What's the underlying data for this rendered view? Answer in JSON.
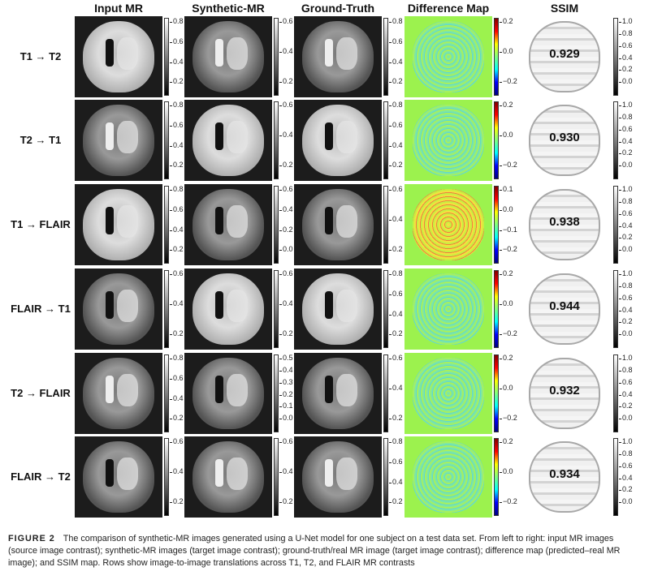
{
  "columns": [
    "Input MR",
    "Synthetic-MR",
    "Ground-Truth",
    "Difference Map",
    "SSIM"
  ],
  "rows": [
    {
      "label": "T1 → T2",
      "input_ticks": [
        "0.8",
        "0.6",
        "0.4",
        "0.2"
      ],
      "synthetic_ticks": [
        "0.6",
        "0.4",
        "0.2"
      ],
      "gt_ticks": [
        "0.8",
        "0.6",
        "0.4",
        "0.2"
      ],
      "diff_ticks": [
        "0.2",
        "0.0",
        "−0.2"
      ],
      "ssim": "0.929",
      "input_contrast": "T1",
      "target_contrast": "T2"
    },
    {
      "label": "T2 → T1",
      "input_ticks": [
        "0.8",
        "0.6",
        "0.4",
        "0.2"
      ],
      "synthetic_ticks": [
        "0.6",
        "0.4",
        "0.2"
      ],
      "gt_ticks": [
        "0.8",
        "0.6",
        "0.4",
        "0.2"
      ],
      "diff_ticks": [
        "0.2",
        "0.0",
        "−0.2"
      ],
      "ssim": "0.930",
      "input_contrast": "T2",
      "target_contrast": "T1"
    },
    {
      "label": "T1 → FLAIR",
      "input_ticks": [
        "0.8",
        "0.6",
        "0.4",
        "0.2"
      ],
      "synthetic_ticks": [
        "0.6",
        "0.4",
        "0.2",
        "0.0"
      ],
      "gt_ticks": [
        "0.6",
        "0.4",
        "0.2"
      ],
      "diff_ticks": [
        "0.1",
        "0.0",
        "−0.1",
        "−0.2"
      ],
      "ssim": "0.938",
      "input_contrast": "T1",
      "target_contrast": "FLAIR"
    },
    {
      "label": "FLAIR → T1",
      "input_ticks": [
        "0.6",
        "0.4",
        "0.2"
      ],
      "synthetic_ticks": [
        "0.6",
        "0.4",
        "0.2"
      ],
      "gt_ticks": [
        "0.8",
        "0.6",
        "0.4",
        "0.2"
      ],
      "diff_ticks": [
        "0.2",
        "0.0",
        "−0.2"
      ],
      "ssim": "0.944",
      "input_contrast": "FLAIR",
      "target_contrast": "T1"
    },
    {
      "label": "T2 → FLAIR",
      "input_ticks": [
        "0.8",
        "0.6",
        "0.4",
        "0.2"
      ],
      "synthetic_ticks": [
        "0.5",
        "0.4",
        "0.3",
        "0.2",
        "0.1",
        "0.0"
      ],
      "gt_ticks": [
        "0.6",
        "0.4",
        "0.2"
      ],
      "diff_ticks": [
        "0.2",
        "0.0",
        "−0.2"
      ],
      "ssim": "0.932",
      "input_contrast": "T2",
      "target_contrast": "FLAIR"
    },
    {
      "label": "FLAIR → T2",
      "input_ticks": [
        "0.6",
        "0.4",
        "0.2"
      ],
      "synthetic_ticks": [
        "0.6",
        "0.4",
        "0.2"
      ],
      "gt_ticks": [
        "0.8",
        "0.6",
        "0.4",
        "0.2"
      ],
      "diff_ticks": [
        "0.2",
        "0.0",
        "−0.2"
      ],
      "ssim": "0.934",
      "input_contrast": "FLAIR",
      "target_contrast": "T2"
    }
  ],
  "ssim_ticks": [
    "1.0",
    "0.8",
    "0.6",
    "0.4",
    "0.2",
    "0.0"
  ],
  "caption": {
    "label": "FIGURE 2",
    "text": "The comparison of synthetic-MR images generated using a U-Net model for one subject on a test data set. From left to right: input MR images (source image contrast); synthetic-MR images (target image contrast); ground-truth/real MR image (target image contrast); difference map (predicted–real MR image); and SSIM map. Rows show image-to-image translations across T1, T2, and FLAIR MR contrasts"
  },
  "colors": {
    "diff_background": "#9cf24e",
    "mr_background": "#1c1c1c"
  }
}
